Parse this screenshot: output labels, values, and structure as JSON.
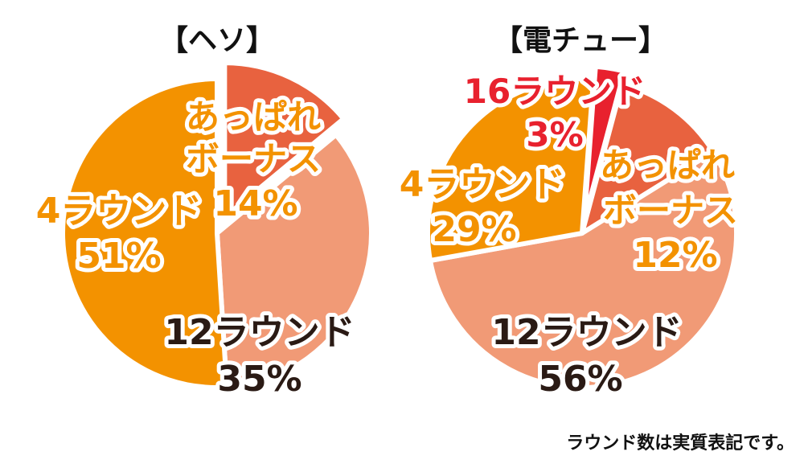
{
  "chart_data": [
    {
      "type": "pie",
      "title": "【ヘソ】",
      "slices": [
        {
          "label": "あっぱれボーナス",
          "value": 14,
          "value_text": "14%",
          "color": "#e8623f"
        },
        {
          "label": "12ラウンド",
          "value": 35,
          "value_text": "35%",
          "color": "#f19a76"
        },
        {
          "label": "4ラウンド",
          "value": 51,
          "value_text": "51%",
          "color": "#f39200"
        }
      ]
    },
    {
      "type": "pie",
      "title": "【電チュー】",
      "slices": [
        {
          "label": "あっぱれボーナス",
          "value": 12,
          "value_text": "12%",
          "color": "#e8623f"
        },
        {
          "label": "12ラウンド",
          "value": 56,
          "value_text": "56%",
          "color": "#f19a76"
        },
        {
          "label": "4ラウンド",
          "value": 29,
          "value_text": "29%",
          "color": "#f39200"
        },
        {
          "label": "16ラウンド",
          "value": 3,
          "value_text": "3%",
          "color": "#e8212e"
        }
      ]
    }
  ],
  "labels": {
    "heso_appare_line1": "あっぱれ",
    "heso_appare_line2": "ボーナス",
    "denchu_appare_line1": "あっぱれ",
    "denchu_appare_line2": "ボーナス"
  },
  "footnote": "ラウンド数は実質表記です。"
}
